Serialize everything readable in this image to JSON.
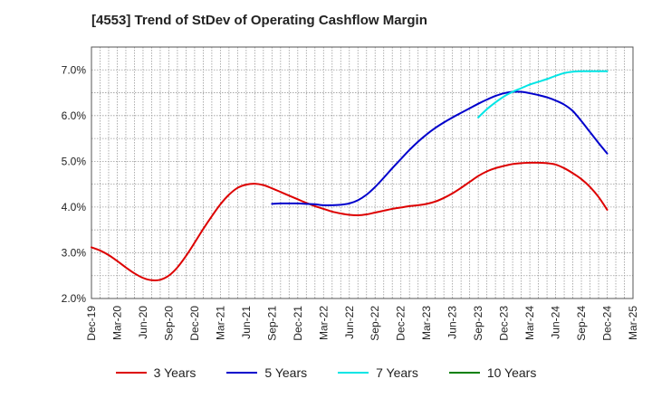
{
  "chart_data": {
    "type": "line",
    "title": "[4553]  Trend of StDev of Operating Cashflow Margin",
    "xlabel": "",
    "ylabel": "",
    "x_ticks": [
      "Dec-19",
      "Mar-20",
      "Jun-20",
      "Sep-20",
      "Dec-20",
      "Mar-21",
      "Jun-21",
      "Sep-21",
      "Dec-21",
      "Mar-22",
      "Jun-22",
      "Sep-22",
      "Dec-22",
      "Mar-23",
      "Jun-23",
      "Sep-23",
      "Dec-23",
      "Mar-24",
      "Jun-24",
      "Sep-24",
      "Dec-24",
      "Mar-25"
    ],
    "y_ticks": [
      "2.0%",
      "3.0%",
      "4.0%",
      "5.0%",
      "6.0%",
      "7.0%"
    ],
    "ylim": [
      2.0,
      7.5
    ],
    "grid": true,
    "legend_position": "bottom",
    "series": [
      {
        "name": "3 Years",
        "color": "#dd0000",
        "points": [
          [
            "Dec-19",
            3.12
          ],
          [
            "Jan-20",
            3.05
          ],
          [
            "Feb-20",
            2.95
          ],
          [
            "Mar-20",
            2.82
          ],
          [
            "Apr-20",
            2.68
          ],
          [
            "May-20",
            2.55
          ],
          [
            "Jun-20",
            2.45
          ],
          [
            "Jul-20",
            2.4
          ],
          [
            "Aug-20",
            2.41
          ],
          [
            "Sep-20",
            2.5
          ],
          [
            "Oct-20",
            2.68
          ],
          [
            "Nov-20",
            2.93
          ],
          [
            "Dec-20",
            3.22
          ],
          [
            "Jan-21",
            3.52
          ],
          [
            "Feb-21",
            3.8
          ],
          [
            "Mar-21",
            4.06
          ],
          [
            "Apr-21",
            4.27
          ],
          [
            "May-21",
            4.42
          ],
          [
            "Jun-21",
            4.49
          ],
          [
            "Jul-21",
            4.51
          ],
          [
            "Aug-21",
            4.48
          ],
          [
            "Sep-21",
            4.41
          ],
          [
            "Oct-21",
            4.33
          ],
          [
            "Nov-21",
            4.25
          ],
          [
            "Dec-21",
            4.17
          ],
          [
            "Jan-22",
            4.09
          ],
          [
            "Feb-22",
            4.02
          ],
          [
            "Mar-22",
            3.96
          ],
          [
            "Apr-22",
            3.9
          ],
          [
            "May-22",
            3.86
          ],
          [
            "Jun-22",
            3.83
          ],
          [
            "Jul-22",
            3.82
          ],
          [
            "Aug-22",
            3.84
          ],
          [
            "Sep-22",
            3.88
          ],
          [
            "Oct-22",
            3.92
          ],
          [
            "Nov-22",
            3.96
          ],
          [
            "Dec-22",
            3.99
          ],
          [
            "Jan-23",
            4.02
          ],
          [
            "Feb-23",
            4.04
          ],
          [
            "Mar-23",
            4.07
          ],
          [
            "Apr-23",
            4.12
          ],
          [
            "May-23",
            4.2
          ],
          [
            "Jun-23",
            4.3
          ],
          [
            "Jul-23",
            4.42
          ],
          [
            "Aug-23",
            4.55
          ],
          [
            "Sep-23",
            4.68
          ],
          [
            "Oct-23",
            4.78
          ],
          [
            "Nov-23",
            4.85
          ],
          [
            "Dec-23",
            4.9
          ],
          [
            "Jan-24",
            4.94
          ],
          [
            "Feb-24",
            4.96
          ],
          [
            "Mar-24",
            4.97
          ],
          [
            "Apr-24",
            4.97
          ],
          [
            "May-24",
            4.96
          ],
          [
            "Jun-24",
            4.93
          ],
          [
            "Jul-24",
            4.85
          ],
          [
            "Aug-24",
            4.74
          ],
          [
            "Sep-24",
            4.61
          ],
          [
            "Oct-24",
            4.44
          ],
          [
            "Nov-24",
            4.22
          ],
          [
            "Dec-24",
            3.94
          ]
        ]
      },
      {
        "name": "5 Years",
        "color": "#0000cc",
        "points": [
          [
            "Sep-21",
            4.07
          ],
          [
            "Oct-21",
            4.08
          ],
          [
            "Nov-21",
            4.08
          ],
          [
            "Dec-21",
            4.08
          ],
          [
            "Jan-22",
            4.07
          ],
          [
            "Feb-22",
            4.06
          ],
          [
            "Mar-22",
            4.04
          ],
          [
            "Apr-22",
            4.04
          ],
          [
            "May-22",
            4.05
          ],
          [
            "Jun-22",
            4.08
          ],
          [
            "Jul-22",
            4.15
          ],
          [
            "Aug-22",
            4.27
          ],
          [
            "Sep-22",
            4.44
          ],
          [
            "Oct-22",
            4.64
          ],
          [
            "Nov-22",
            4.85
          ],
          [
            "Dec-22",
            5.05
          ],
          [
            "Jan-23",
            5.25
          ],
          [
            "Feb-23",
            5.43
          ],
          [
            "Mar-23",
            5.59
          ],
          [
            "Apr-23",
            5.73
          ],
          [
            "May-23",
            5.85
          ],
          [
            "Jun-23",
            5.96
          ],
          [
            "Jul-23",
            6.06
          ],
          [
            "Aug-23",
            6.16
          ],
          [
            "Sep-23",
            6.26
          ],
          [
            "Oct-23",
            6.35
          ],
          [
            "Nov-23",
            6.43
          ],
          [
            "Dec-23",
            6.49
          ],
          [
            "Jan-24",
            6.52
          ],
          [
            "Feb-24",
            6.52
          ],
          [
            "Mar-24",
            6.49
          ],
          [
            "Apr-24",
            6.45
          ],
          [
            "May-24",
            6.4
          ],
          [
            "Jun-24",
            6.33
          ],
          [
            "Jul-24",
            6.24
          ],
          [
            "Aug-24",
            6.1
          ],
          [
            "Sep-24",
            5.88
          ],
          [
            "Oct-24",
            5.64
          ],
          [
            "Nov-24",
            5.4
          ],
          [
            "Dec-24",
            5.17
          ]
        ]
      },
      {
        "name": "7 Years",
        "color": "#00e5e5",
        "points": [
          [
            "Sep-23",
            5.96
          ],
          [
            "Oct-23",
            6.14
          ],
          [
            "Nov-23",
            6.29
          ],
          [
            "Dec-23",
            6.42
          ],
          [
            "Jan-24",
            6.52
          ],
          [
            "Feb-24",
            6.6
          ],
          [
            "Mar-24",
            6.68
          ],
          [
            "Apr-24",
            6.74
          ],
          [
            "May-24",
            6.8
          ],
          [
            "Jun-24",
            6.87
          ],
          [
            "Jul-24",
            6.93
          ],
          [
            "Aug-24",
            6.96
          ],
          [
            "Sep-24",
            6.97
          ],
          [
            "Oct-24",
            6.97
          ],
          [
            "Nov-24",
            6.97
          ],
          [
            "Dec-24",
            6.97
          ]
        ]
      },
      {
        "name": "10 Years",
        "color": "#008000",
        "points": []
      }
    ]
  }
}
